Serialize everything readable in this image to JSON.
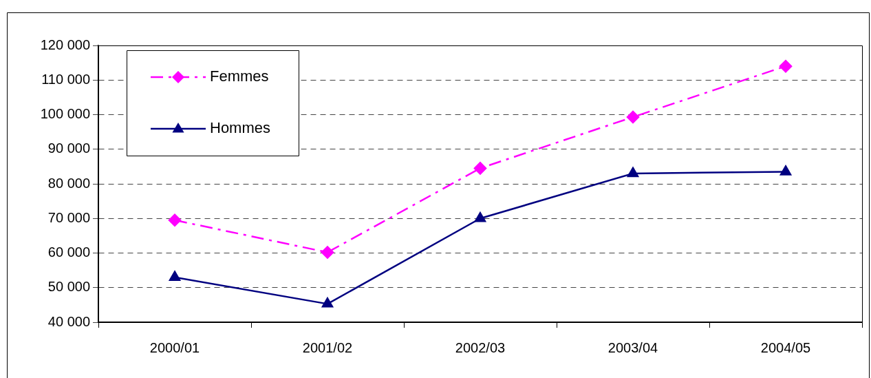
{
  "chart_data": {
    "type": "line",
    "categories": [
      "2000/01",
      "2001/02",
      "2002/03",
      "2003/04",
      "2004/05"
    ],
    "series": [
      {
        "name": "Femmes",
        "color": "#ff00ff",
        "marker": "diamond",
        "line_style": "dashed",
        "values": [
          69500,
          60200,
          84500,
          99300,
          114000
        ]
      },
      {
        "name": "Hommes",
        "color": "#000080",
        "marker": "triangle",
        "line_style": "solid",
        "values": [
          53000,
          45300,
          70000,
          83000,
          83500
        ]
      }
    ],
    "ylim": [
      40000,
      120000
    ],
    "yticks": [
      {
        "value": 40000,
        "label": "40 000"
      },
      {
        "value": 50000,
        "label": "50 000"
      },
      {
        "value": 60000,
        "label": "60 000"
      },
      {
        "value": 70000,
        "label": "70 000"
      },
      {
        "value": 80000,
        "label": "80 000"
      },
      {
        "value": 90000,
        "label": "90 000"
      },
      {
        "value": 100000,
        "label": "100 000"
      },
      {
        "value": 110000,
        "label": "110 000"
      },
      {
        "value": 120000,
        "label": "120 000"
      }
    ],
    "grid": "y",
    "legend": "top left"
  }
}
